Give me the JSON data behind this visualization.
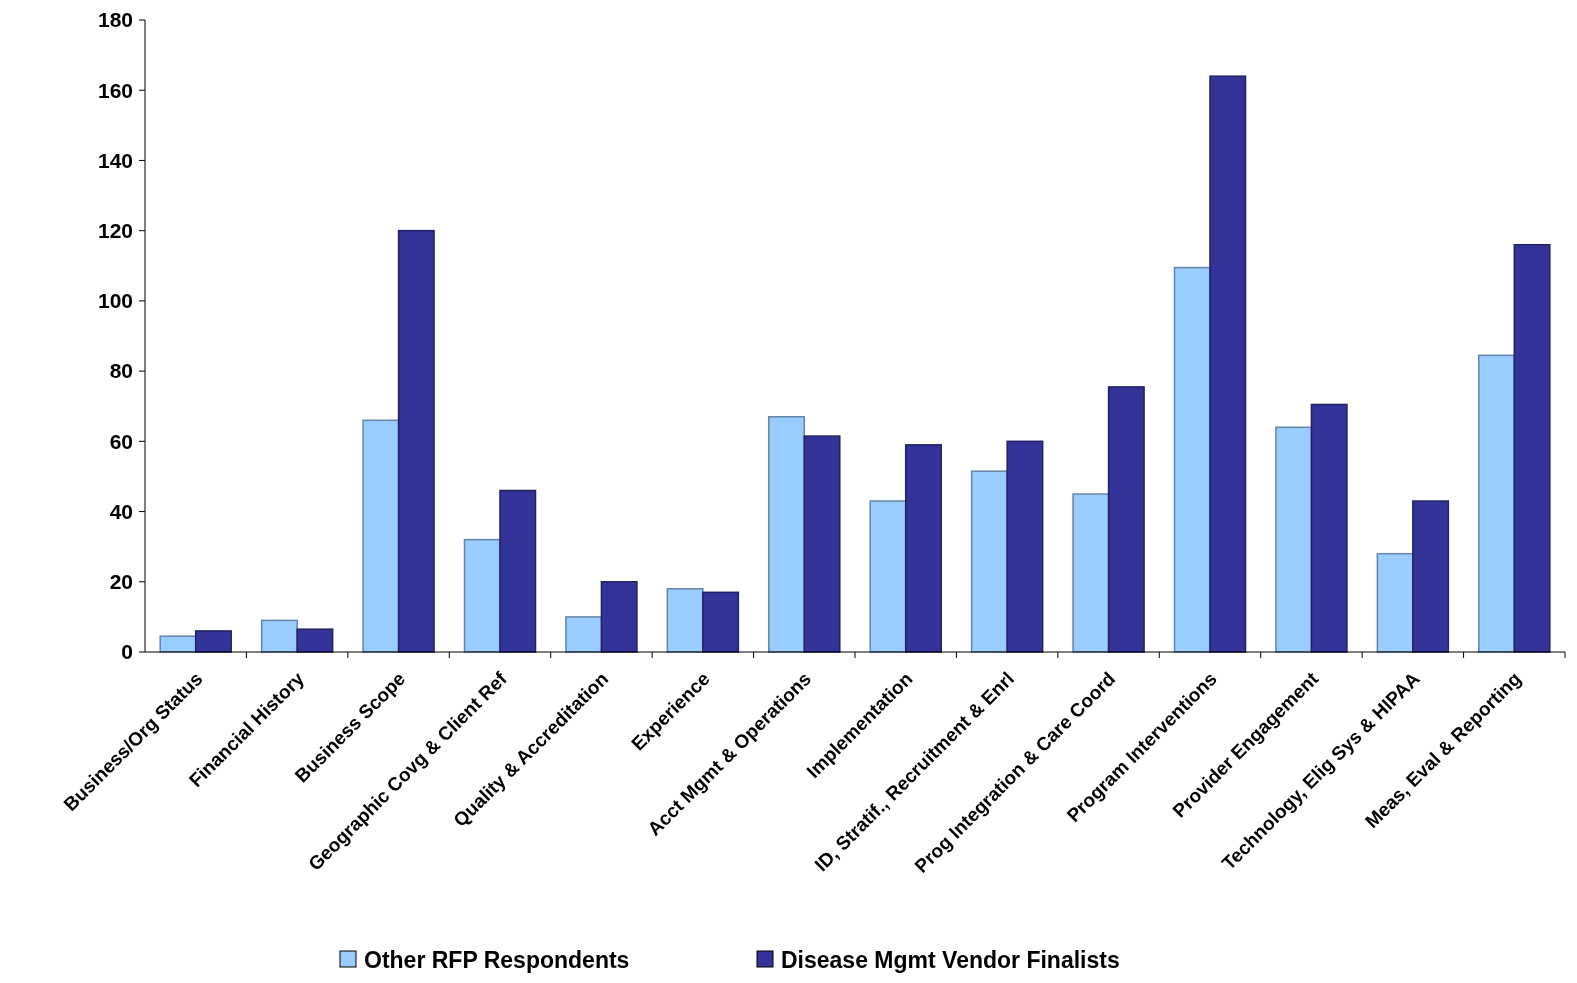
{
  "chart_data": {
    "type": "bar",
    "categories": [
      "Business/Org Status",
      "Financial History",
      "Business Scope",
      "Geographic Covg & Client Ref",
      "Quality & Accreditation",
      "Experience",
      "Acct Mgmt & Operations",
      "Implementation",
      "ID, Stratif., Recruitment & Enrl",
      "Prog Integration & Care Coord",
      "Program Interventions",
      "Provider Engagement",
      "Technology, Elig Sys & HIPAA",
      "Meas, Eval & Reporting"
    ],
    "series": [
      {
        "name": "Other RFP Respondents",
        "color": "#99ccff",
        "values": [
          4.5,
          9,
          66,
          32,
          10,
          18,
          67,
          43,
          51.5,
          45,
          109.5,
          64,
          28,
          84.5
        ]
      },
      {
        "name": "Disease Mgmt Vendor Finalists",
        "color": "#333399",
        "values": [
          6,
          6.5,
          120,
          46,
          20,
          17,
          61.5,
          59,
          60,
          75.5,
          164,
          70.5,
          43,
          116
        ]
      }
    ],
    "ylim": [
      0,
      180
    ],
    "yticks": [
      0,
      20,
      40,
      60,
      80,
      100,
      120,
      140,
      160,
      180
    ],
    "grid": false,
    "legend": "bottom"
  }
}
